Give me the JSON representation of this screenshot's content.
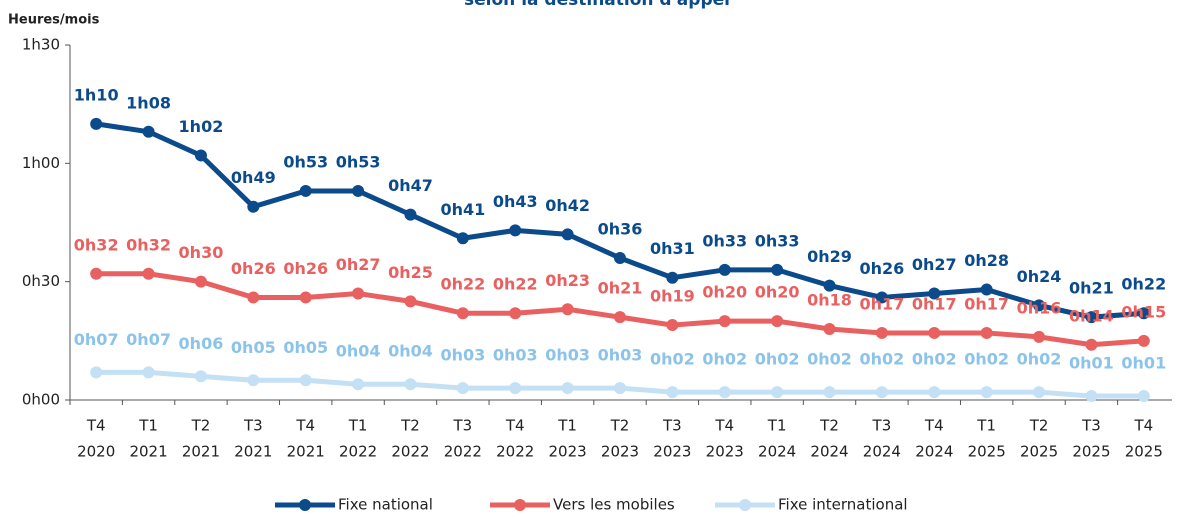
{
  "chart_data": {
    "type": "line",
    "title": "selon la destination d'appel",
    "y_label": "Heures/mois",
    "categories": [
      [
        "T4",
        "2020"
      ],
      [
        "T1",
        "2021"
      ],
      [
        "T2",
        "2021"
      ],
      [
        "T3",
        "2021"
      ],
      [
        "T4",
        "2021"
      ],
      [
        "T1",
        "2022"
      ],
      [
        "T2",
        "2022"
      ],
      [
        "T3",
        "2022"
      ],
      [
        "T4",
        "2022"
      ],
      [
        "T1",
        "2023"
      ],
      [
        "T2",
        "2023"
      ],
      [
        "T3",
        "2023"
      ],
      [
        "T4",
        "2023"
      ],
      [
        "T1",
        "2024"
      ],
      [
        "T2",
        "2024"
      ],
      [
        "T3",
        "2024"
      ],
      [
        "T4",
        "2024"
      ],
      [
        "T1",
        "2025"
      ],
      [
        "T2",
        "2025"
      ],
      [
        "T3",
        "2025"
      ],
      [
        "T4",
        "2025"
      ]
    ],
    "ylim": [
      0,
      90
    ],
    "yticks": [
      {
        "value": 0,
        "label": "0h00"
      },
      {
        "value": 30,
        "label": "0h30"
      },
      {
        "value": 60,
        "label": "1h00"
      },
      {
        "value": 90,
        "label": "1h30"
      }
    ],
    "series": [
      {
        "name": "Fixe national",
        "color": "#0b4a8b",
        "label_color": "#0b4a8b",
        "values": [
          70,
          68,
          62,
          49,
          53,
          53,
          47,
          41,
          43,
          42,
          36,
          31,
          33,
          33,
          29,
          26,
          27,
          28,
          24,
          21,
          22
        ],
        "value_labels": [
          "1h10",
          "1h08",
          "1h02",
          "0h49",
          "0h53",
          "0h53",
          "0h47",
          "0h41",
          "0h43",
          "0h42",
          "0h36",
          "0h31",
          "0h33",
          "0h33",
          "0h29",
          "0h26",
          "0h27",
          "0h28",
          "0h24",
          "0h21",
          "0h22"
        ]
      },
      {
        "name": "Vers les mobiles",
        "color": "#e8605f",
        "label_color": "#e8605f",
        "values": [
          32,
          32,
          30,
          26,
          26,
          27,
          25,
          22,
          22,
          23,
          21,
          19,
          20,
          20,
          18,
          17,
          17,
          17,
          16,
          14,
          15
        ],
        "value_labels": [
          "0h32",
          "0h32",
          "0h30",
          "0h26",
          "0h26",
          "0h27",
          "0h25",
          "0h22",
          "0h22",
          "0h23",
          "0h21",
          "0h19",
          "0h20",
          "0h20",
          "0h18",
          "0h17",
          "0h17",
          "0h17",
          "0h16",
          "0h14",
          "0h15"
        ]
      },
      {
        "name": "Fixe international",
        "color": "#c4e0f4",
        "label_color": "#8cc3ea",
        "values": [
          7,
          7,
          6,
          5,
          5,
          4,
          4,
          3,
          3,
          3,
          3,
          2,
          2,
          2,
          2,
          2,
          2,
          2,
          2,
          1,
          1
        ],
        "value_labels": [
          "0h07",
          "0h07",
          "0h06",
          "0h05",
          "0h05",
          "0h04",
          "0h04",
          "0h03",
          "0h03",
          "0h03",
          "0h03",
          "0h02",
          "0h02",
          "0h02",
          "0h02",
          "0h02",
          "0h02",
          "0h02",
          "0h02",
          "0h01",
          "0h01"
        ]
      }
    ]
  }
}
